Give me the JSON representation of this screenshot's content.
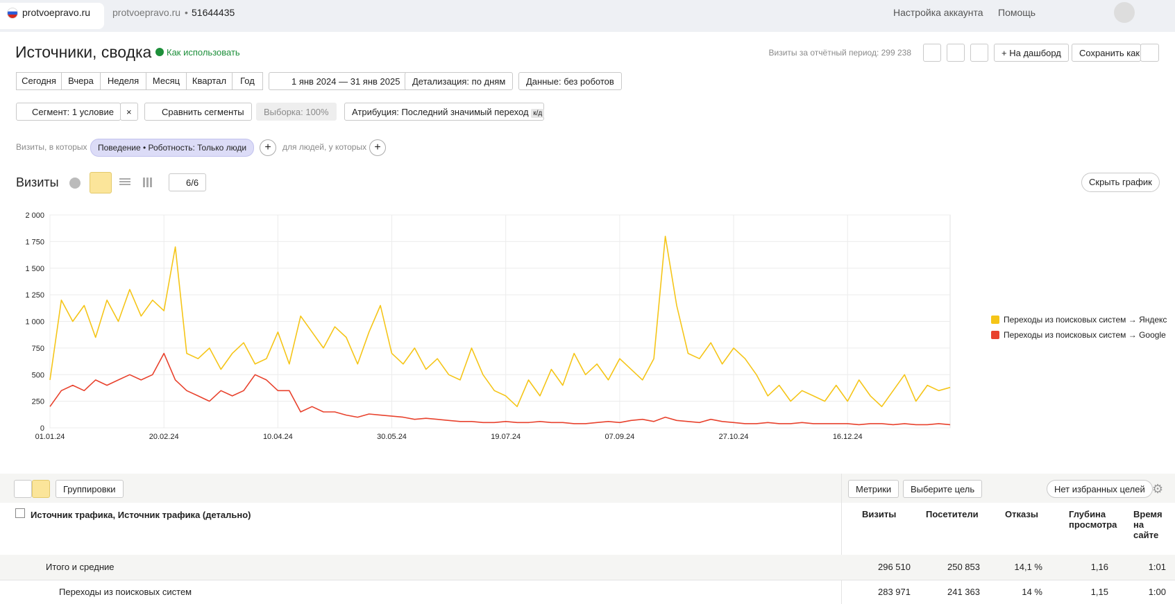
{
  "ui": {
    "topbar": {
      "site": "protvoepravo.ru",
      "counter_site": "protvoepravo.ru",
      "counter_id": "51644435",
      "account": "Настройка аккаунта",
      "help": "Помощь"
    },
    "header": {
      "title": "Источники, сводка",
      "how_to": "Как использовать",
      "visits_total": "Визиты за отчётный период: 299 238",
      "to_dashboard": "На дашборд",
      "save_as": "Сохранить как"
    },
    "periods": [
      "Сегодня",
      "Вчера",
      "Неделя",
      "Месяц",
      "Квартал",
      "Год"
    ],
    "date_range": "1 янв 2024 — 31 янв 2025",
    "detail": "Детализация: по дням",
    "data_filter": "Данные: без роботов",
    "segment": "Сегмент: 1 условие",
    "compare": "Сравнить сегменты",
    "sample": "Выборка: 100%",
    "attribution": "Атрибуция: Последний значимый переход",
    "attribution_tag": "к/д",
    "filter": {
      "prefix": "Визиты, в которых",
      "chip": "Поведение • Роботность: Только люди",
      "people": "для людей, у которых"
    },
    "chart_panel": {
      "notes": "6/6",
      "hide": "Скрыть график"
    },
    "table": {
      "groupings": "Группировки",
      "metrics": "Метрики",
      "goal": "Выберите цель",
      "favorites": "Нет избранных целей",
      "dimension": "Источник трафика, Источник трафика (детально)",
      "columns": [
        "Визиты",
        "Посетители",
        "Отказы",
        "Глубина просмотра",
        "Время на сайте"
      ],
      "rows": [
        {
          "label": "Итого и средние",
          "cells": [
            "296 510",
            "250 853",
            "14,1 %",
            "1,16",
            "1:01"
          ]
        },
        {
          "label": "Переходы из поисковых систем",
          "cells": [
            "283 971",
            "241 363",
            "14 %",
            "1,15",
            "1:00"
          ]
        }
      ]
    }
  },
  "chart_data": {
    "type": "line",
    "title": "Визиты",
    "x": [
      "01.01.24",
      null,
      null,
      null,
      null,
      null,
      null,
      null,
      null,
      null,
      "20.02.24",
      null,
      null,
      null,
      null,
      null,
      null,
      null,
      null,
      null,
      "10.04.24",
      null,
      null,
      null,
      null,
      null,
      null,
      null,
      null,
      null,
      "30.05.24",
      null,
      null,
      null,
      null,
      null,
      null,
      null,
      null,
      null,
      "19.07.24",
      null,
      null,
      null,
      null,
      null,
      null,
      null,
      null,
      null,
      "07.09.24",
      null,
      null,
      null,
      null,
      null,
      null,
      null,
      null,
      null,
      "27.10.24",
      null,
      null,
      null,
      null,
      null,
      null,
      null,
      null,
      null,
      "16.12.24",
      null,
      null,
      null,
      null,
      null,
      null,
      null,
      null,
      null
    ],
    "series": [
      {
        "name": "Переходы из поисковых систем → Яндекс",
        "color": "#f5c518",
        "values": [
          450,
          1200,
          1000,
          1150,
          850,
          1200,
          1000,
          1300,
          1050,
          1200,
          1100,
          1700,
          700,
          650,
          750,
          550,
          700,
          800,
          600,
          650,
          900,
          600,
          1050,
          900,
          750,
          950,
          850,
          600,
          900,
          1150,
          700,
          600,
          750,
          550,
          650,
          500,
          450,
          750,
          500,
          350,
          300,
          200,
          450,
          300,
          550,
          400,
          700,
          500,
          600,
          450,
          650,
          550,
          450,
          650,
          1800,
          1150,
          700,
          650,
          800,
          600,
          750,
          650,
          500,
          300,
          400,
          250,
          350,
          300,
          250,
          400,
          250,
          450,
          300,
          200,
          350,
          500,
          250,
          400,
          350,
          380
        ]
      },
      {
        "name": "Переходы из поисковых систем → Google",
        "color": "#e8412c",
        "values": [
          200,
          350,
          400,
          350,
          450,
          400,
          450,
          500,
          450,
          500,
          700,
          450,
          350,
          300,
          250,
          350,
          300,
          350,
          500,
          450,
          350,
          350,
          150,
          200,
          150,
          150,
          120,
          100,
          130,
          120,
          110,
          100,
          80,
          90,
          80,
          70,
          60,
          60,
          50,
          50,
          60,
          50,
          50,
          60,
          50,
          50,
          40,
          40,
          50,
          60,
          50,
          70,
          80,
          60,
          100,
          70,
          60,
          50,
          80,
          60,
          50,
          40,
          40,
          50,
          40,
          40,
          50,
          40,
          40,
          40,
          40,
          30,
          40,
          40,
          30,
          40,
          30,
          30,
          40,
          30
        ]
      }
    ],
    "ylim": [
      0,
      2000
    ],
    "yticks": [
      0,
      250,
      500,
      750,
      {
        "value": 1000,
        "label": "1 000"
      },
      {
        "value": 1250,
        "label": "1 250"
      },
      {
        "value": 1500,
        "label": "1 500"
      },
      {
        "value": 1750,
        "label": "1 750"
      },
      {
        "value": 2000,
        "label": "2 000"
      }
    ],
    "grid": true,
    "legend": "right"
  }
}
